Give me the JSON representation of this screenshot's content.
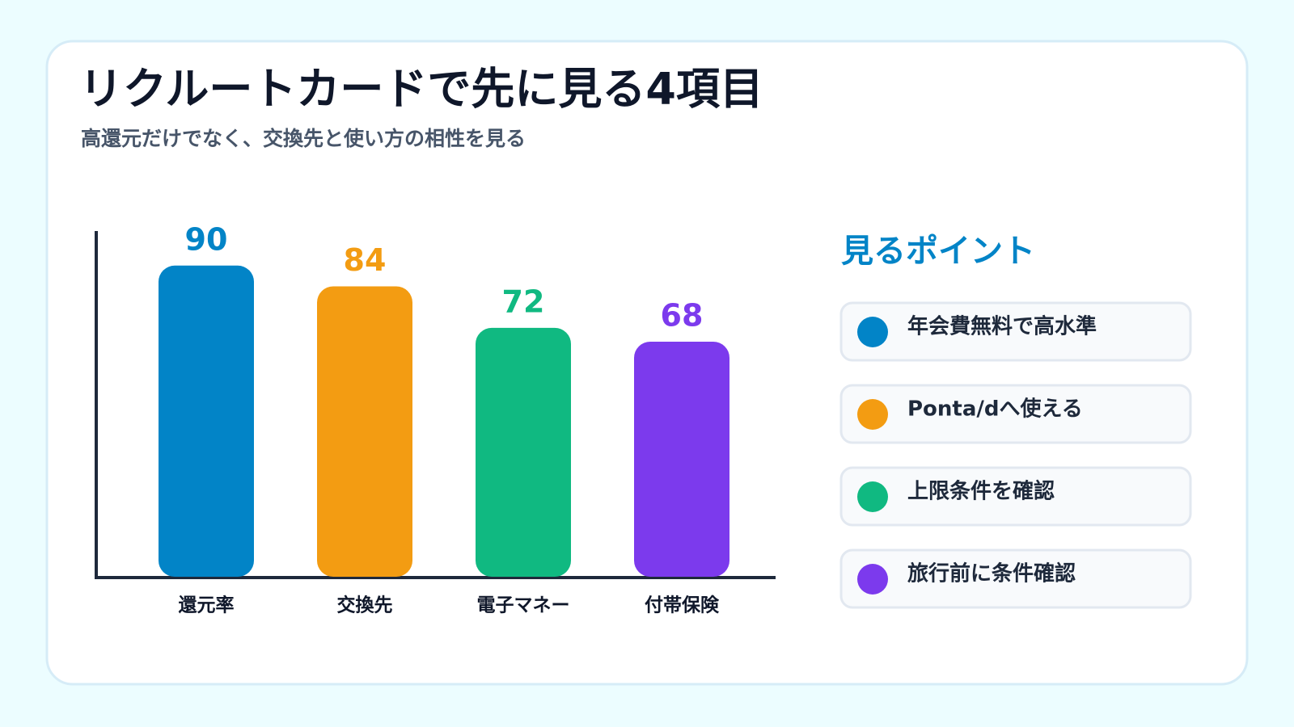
{
  "chart_data": {
    "type": "bar",
    "title": "リクルートカードで先に見る4項目",
    "subtitle": "高還元だけでなく、交換先と使い方の相性を見る",
    "categories": [
      "還元率",
      "交換先",
      "電子マネー",
      "付帯保険"
    ],
    "values": [
      90,
      84,
      72,
      68
    ],
    "colors": [
      "#0284c7",
      "#f39c12",
      "#10b981",
      "#7c3aed"
    ],
    "ylim": [
      0,
      100
    ],
    "points_title": "見るポイント",
    "points": [
      {
        "label": "年会費無料で高水準",
        "color": "#0284c7"
      },
      {
        "label": "Ponta/dへ使える",
        "color": "#f39c12"
      },
      {
        "label": "上限条件を確認",
        "color": "#10b981"
      },
      {
        "label": "旅行前に条件確認",
        "color": "#7c3aed"
      }
    ]
  }
}
